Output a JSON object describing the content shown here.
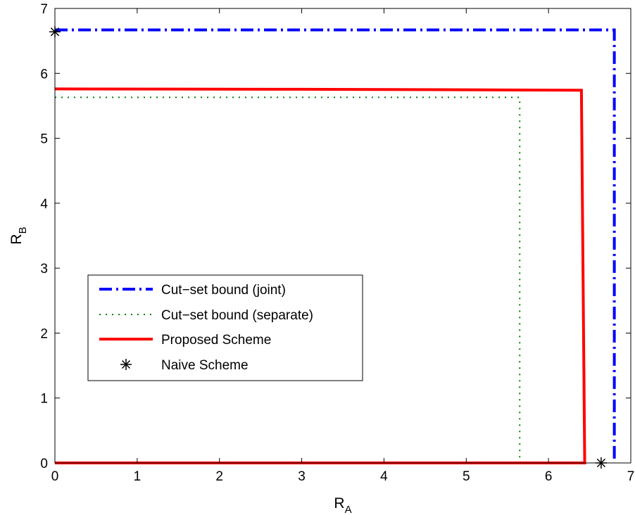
{
  "chart_data": {
    "type": "line",
    "xlabel": {
      "main": "R",
      "sub": "A"
    },
    "ylabel": {
      "main": "R",
      "sub": "B"
    },
    "xlim": [
      0,
      7
    ],
    "ylim": [
      0,
      7
    ],
    "x_ticks": [
      0,
      1,
      2,
      3,
      4,
      5,
      6,
      7
    ],
    "y_ticks": [
      0,
      1,
      2,
      3,
      4,
      5,
      6,
      7
    ],
    "grid": false,
    "legend_position": "center-left",
    "series": [
      {
        "name": "Cut−set bound (joint)",
        "style": "dash-dot",
        "color": "#0000ff",
        "points": [
          [
            0,
            6.67
          ],
          [
            6.8,
            6.67
          ],
          [
            6.8,
            0
          ]
        ]
      },
      {
        "name": "Cut−set bound (separate)",
        "style": "dotted",
        "color": "#008000",
        "points": [
          [
            0,
            5.63
          ],
          [
            5.65,
            5.63
          ],
          [
            5.65,
            0
          ]
        ]
      },
      {
        "name": "Proposed Scheme",
        "style": "solid",
        "color": "#ff0000",
        "points": [
          [
            0,
            5.76
          ],
          [
            3.0,
            5.755
          ],
          [
            5.5,
            5.745
          ],
          [
            6.4,
            5.74
          ],
          [
            6.44,
            0
          ],
          [
            0,
            0
          ]
        ]
      },
      {
        "name": "Naive Scheme",
        "style": "marker-asterisk",
        "color": "#000000",
        "points": [
          [
            0,
            6.64
          ],
          [
            6.64,
            0
          ]
        ]
      }
    ]
  }
}
